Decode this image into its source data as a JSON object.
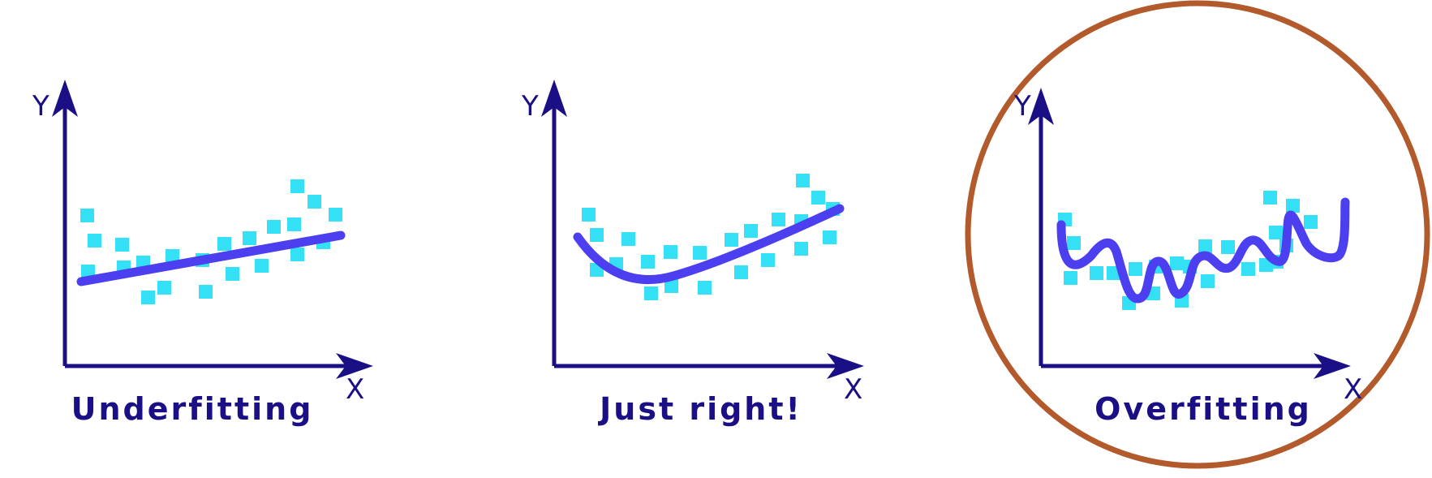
{
  "colors": {
    "axis": "#1a0f85",
    "points": "#33e0f5",
    "curve": "#4b3ff0",
    "highlight": "#b25a2c"
  },
  "panels": [
    {
      "caption": "Underfitting",
      "x_label": "X",
      "y_label": "Y",
      "fit": "linear",
      "highlighted": false
    },
    {
      "caption": "Just right!",
      "x_label": "X",
      "y_label": "Y",
      "fit": "quadratic",
      "highlighted": false
    },
    {
      "caption": "Overfitting",
      "x_label": "X",
      "y_label": "Y",
      "fit": "wiggly",
      "highlighted": true
    }
  ]
}
